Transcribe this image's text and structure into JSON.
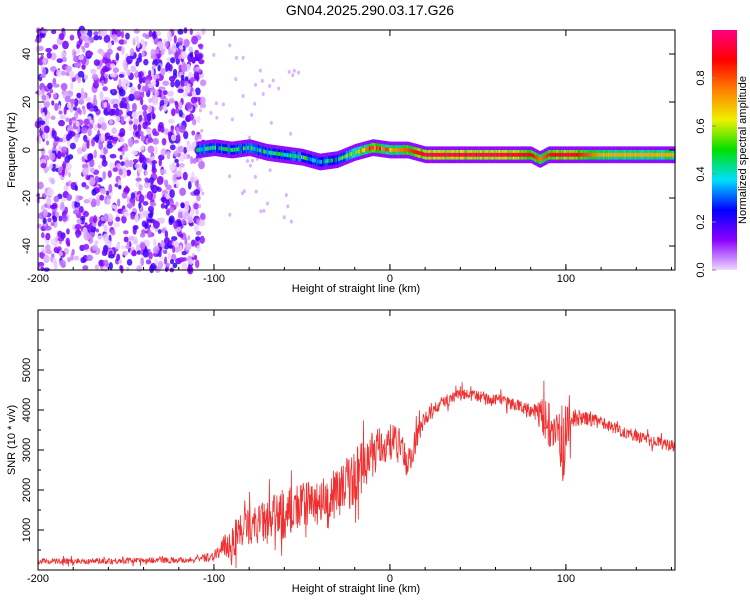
{
  "title": "GN04.2025.290.03.17.G26",
  "chart_data": [
    {
      "type": "heatmap",
      "title": "GN04.2025.290.03.17.G26",
      "xlabel": "Height of straight line (km)",
      "ylabel": "Frequency (Hz)",
      "xlim": [
        -200,
        162
      ],
      "ylim": [
        -50,
        50
      ],
      "xticks": [
        -200,
        -100,
        0,
        100
      ],
      "xtick_labels": [
        "-200",
        "-100",
        "0",
        "100"
      ],
      "yticks": [
        -40,
        -20,
        0,
        20,
        40
      ],
      "ytick_labels": [
        "-40",
        "-20",
        "0",
        "20",
        "40"
      ],
      "noise_region_x": [
        -200,
        -110
      ],
      "ridge": {
        "x": [
          -110,
          -100,
          -90,
          -80,
          -70,
          -60,
          -50,
          -40,
          -30,
          -20,
          -10,
          0,
          10,
          20,
          40,
          60,
          80,
          85,
          90,
          100,
          120,
          140,
          162
        ],
        "freq": [
          0,
          1,
          0,
          1,
          -1,
          -2,
          -3,
          -5,
          -4,
          -1,
          1,
          0,
          0,
          -2,
          -2,
          -2,
          -2,
          -4,
          -2,
          -2,
          -2,
          -2,
          -2
        ],
        "amplitude": [
          0.45,
          0.4,
          0.4,
          0.45,
          0.4,
          0.4,
          0.45,
          0.35,
          0.4,
          0.6,
          0.85,
          0.7,
          0.8,
          0.95,
          0.95,
          0.95,
          0.9,
          0.75,
          0.85,
          0.95,
          0.7,
          0.7,
          0.7
        ]
      },
      "colorbar": {
        "label": "Normalized spectral amplitude",
        "range": [
          0,
          1
        ],
        "ticks": [
          0.0,
          0.2,
          0.4,
          0.6,
          0.8
        ],
        "tick_labels": [
          "0.0",
          "0.2",
          "0.4",
          "0.6",
          "0.8"
        ],
        "colors": [
          "#f0d8ff",
          "#8a00ff",
          "#0000ff",
          "#00e0ff",
          "#00e000",
          "#f0f000",
          "#ff8000",
          "#ff0000",
          "#ff0080"
        ]
      }
    },
    {
      "type": "line",
      "xlabel": "Height of straight line (km)",
      "ylabel": "SNR (10 * v/v)",
      "xlim": [
        -200,
        162
      ],
      "ylim": [
        0,
        6500
      ],
      "xticks": [
        -200,
        -100,
        0,
        100
      ],
      "xtick_labels": [
        "-200",
        "-100",
        "0",
        "100"
      ],
      "yticks": [
        1000,
        2000,
        3000,
        4000,
        5000
      ],
      "ytick_labels": [
        "1000",
        "2000",
        "3000",
        "4000",
        "5000"
      ],
      "color": "#f03030",
      "series": {
        "x": [
          -200,
          -180,
          -160,
          -140,
          -120,
          -110,
          -100,
          -90,
          -85,
          -80,
          -70,
          -60,
          -50,
          -40,
          -30,
          -20,
          -10,
          0,
          5,
          10,
          15,
          20,
          30,
          40,
          50,
          60,
          70,
          80,
          85,
          90,
          95,
          98,
          100,
          105,
          110,
          120,
          130,
          140,
          150,
          162
        ],
        "mean": [
          220,
          220,
          230,
          240,
          250,
          260,
          350,
          700,
          1000,
          1100,
          1200,
          1400,
          1600,
          1700,
          1900,
          2300,
          2900,
          3200,
          3200,
          2600,
          3300,
          3800,
          4200,
          4400,
          4350,
          4250,
          4150,
          4000,
          3900,
          3700,
          3600,
          3000,
          3500,
          3800,
          3800,
          3700,
          3500,
          3350,
          3200,
          3100
        ],
        "spread": [
          150,
          150,
          150,
          150,
          150,
          160,
          250,
          900,
          1000,
          900,
          1100,
          1300,
          1200,
          1100,
          1300,
          1400,
          1200,
          900,
          800,
          900,
          600,
          400,
          300,
          300,
          300,
          300,
          300,
          350,
          700,
          1300,
          900,
          2400,
          1300,
          500,
          350,
          300,
          300,
          300,
          300,
          300
        ]
      }
    }
  ]
}
